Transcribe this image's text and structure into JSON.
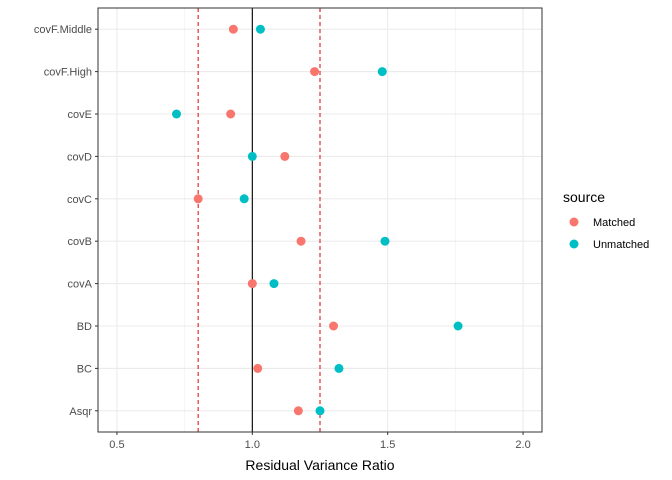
{
  "chart_data": {
    "type": "scatter",
    "xlabel": "Residual Variance Ratio",
    "ylabel": "",
    "xlim": [
      0.43,
      2.07
    ],
    "xticks": [
      0.5,
      1.0,
      1.5,
      2.0
    ],
    "xtick_labels": [
      "0.5",
      "1.0",
      "1.5",
      "2.0"
    ],
    "categories": [
      "Asqr",
      "BC",
      "BD",
      "covA",
      "covB",
      "covC",
      "covD",
      "covE",
      "covF.High",
      "covF.Middle"
    ],
    "grid": true,
    "legend": {
      "title": "source",
      "position": "right"
    },
    "reference_lines": [
      {
        "x": 1.0,
        "color": "#000000",
        "style": "solid"
      },
      {
        "x": 0.8,
        "color": "#e41a1c",
        "style": "dashed"
      },
      {
        "x": 1.25,
        "color": "#e41a1c",
        "style": "dashed"
      }
    ],
    "series": [
      {
        "name": "Matched",
        "color": "#F8766D",
        "values": [
          1.17,
          1.02,
          1.3,
          1.0,
          1.18,
          0.8,
          1.12,
          0.92,
          1.23,
          0.93
        ]
      },
      {
        "name": "Unmatched",
        "color": "#00BFC4",
        "values": [
          1.25,
          1.32,
          1.76,
          1.08,
          1.49,
          0.97,
          1.0,
          0.72,
          1.48,
          1.03
        ]
      }
    ]
  }
}
